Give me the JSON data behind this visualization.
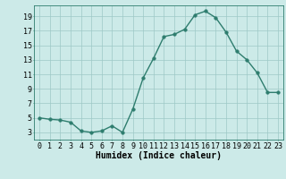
{
  "x": [
    0,
    1,
    2,
    3,
    4,
    5,
    6,
    7,
    8,
    9,
    10,
    11,
    12,
    13,
    14,
    15,
    16,
    17,
    18,
    19,
    20,
    21,
    22,
    23
  ],
  "y": [
    5.0,
    4.8,
    4.7,
    4.4,
    3.2,
    3.0,
    3.2,
    3.9,
    3.0,
    6.2,
    10.5,
    13.2,
    16.2,
    16.5,
    17.2,
    19.2,
    19.7,
    18.8,
    16.8,
    14.2,
    13.0,
    11.2,
    8.5,
    8.5
  ],
  "line_color": "#2e7d6e",
  "bg_color": "#cceae8",
  "grid_color": "#9ec8c6",
  "xlabel": "Humidex (Indice chaleur)",
  "ylim": [
    2,
    20.5
  ],
  "xlim": [
    -0.5,
    23.5
  ],
  "yticks": [
    3,
    5,
    7,
    9,
    11,
    13,
    15,
    17,
    19
  ],
  "xticks": [
    0,
    1,
    2,
    3,
    4,
    5,
    6,
    7,
    8,
    9,
    10,
    11,
    12,
    13,
    14,
    15,
    16,
    17,
    18,
    19,
    20,
    21,
    22,
    23
  ],
  "marker_size": 2.5,
  "line_width": 1.0,
  "xlabel_fontsize": 7,
  "tick_fontsize": 6
}
